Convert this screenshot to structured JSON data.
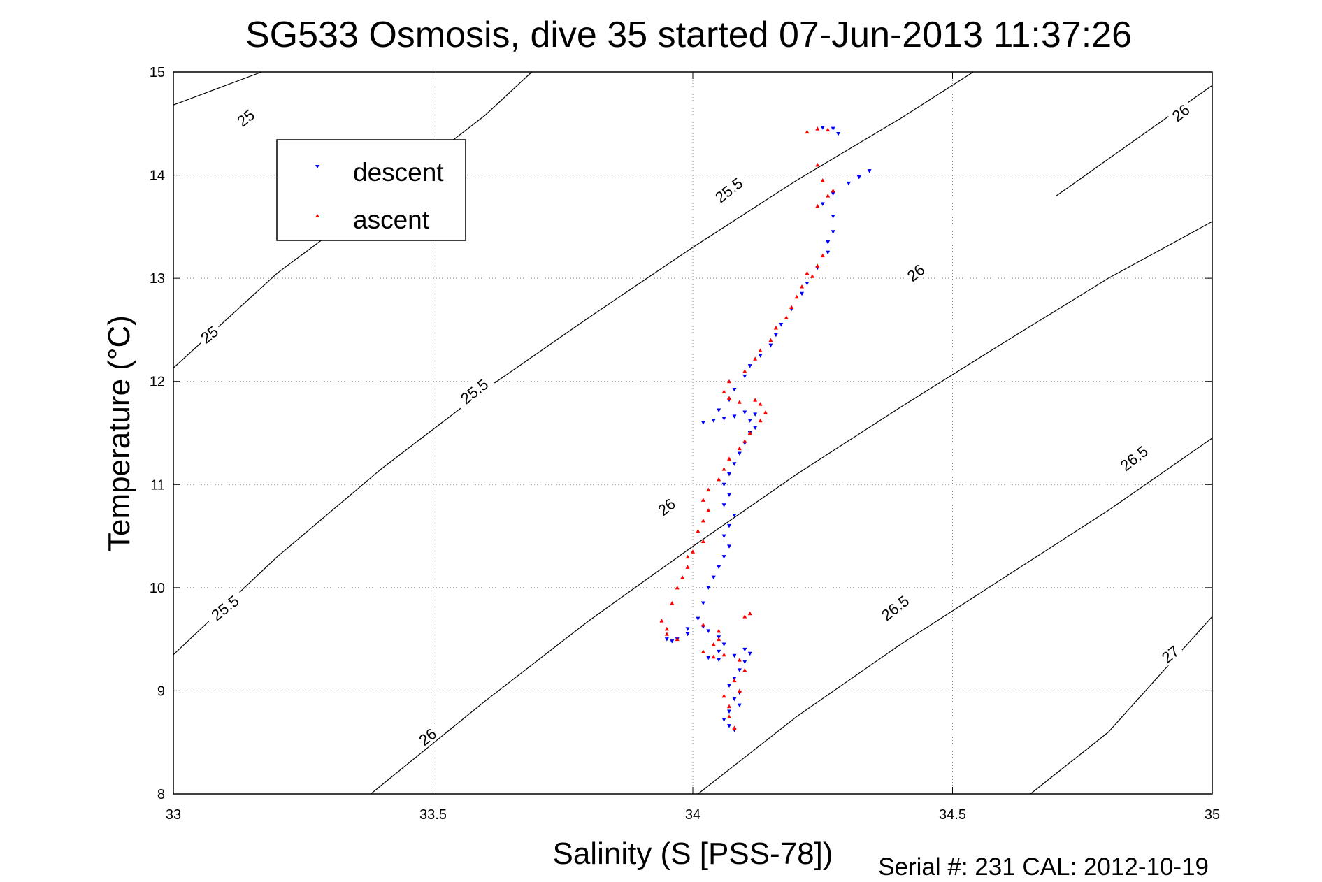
{
  "chart_data": {
    "type": "scatter",
    "title": "SG533 Osmosis, dive 35 started 07-Jun-2013 11:37:26",
    "xlabel": "Salinity (S [PSS-78])",
    "ylabel": "Temperature (°C)",
    "xlim": [
      33,
      35
    ],
    "ylim": [
      8,
      15
    ],
    "xticks": [
      33,
      33.5,
      34,
      34.5,
      35
    ],
    "xtick_labels": [
      "33",
      "33.5",
      "34",
      "34.5",
      "35"
    ],
    "yticks": [
      8,
      9,
      10,
      11,
      12,
      13,
      14,
      15
    ],
    "ytick_labels": [
      "8",
      "9",
      "10",
      "11",
      "12",
      "13",
      "14",
      "15"
    ],
    "grid": true,
    "legend_position": "upper-left",
    "footer": "Serial #: 231  CAL: 2012-10-19",
    "series": [
      {
        "name": "descent",
        "color": "#0000ff",
        "marker": "triangle-down",
        "points": [
          [
            34.08,
            8.62
          ],
          [
            34.07,
            8.66
          ],
          [
            34.06,
            8.72
          ],
          [
            34.07,
            8.8
          ],
          [
            34.09,
            8.86
          ],
          [
            34.08,
            8.92
          ],
          [
            34.09,
            8.98
          ],
          [
            34.07,
            9.05
          ],
          [
            34.08,
            9.12
          ],
          [
            34.09,
            9.2
          ],
          [
            34.1,
            9.28
          ],
          [
            34.11,
            9.36
          ],
          [
            34.1,
            9.4
          ],
          [
            34.08,
            9.34
          ],
          [
            34.05,
            9.3
          ],
          [
            34.03,
            9.32
          ],
          [
            34.05,
            9.38
          ],
          [
            34.06,
            9.45
          ],
          [
            34.05,
            9.52
          ],
          [
            34.03,
            9.58
          ],
          [
            34.02,
            9.62
          ],
          [
            33.99,
            9.55
          ],
          [
            33.97,
            9.5
          ],
          [
            33.96,
            9.48
          ],
          [
            33.95,
            9.5
          ],
          [
            33.99,
            9.6
          ],
          [
            34.01,
            9.7
          ],
          [
            34.02,
            9.85
          ],
          [
            34.03,
            10.0
          ],
          [
            34.04,
            10.1
          ],
          [
            34.05,
            10.2
          ],
          [
            34.06,
            10.3
          ],
          [
            34.07,
            10.4
          ],
          [
            34.06,
            10.5
          ],
          [
            34.07,
            10.6
          ],
          [
            34.08,
            10.7
          ],
          [
            34.06,
            10.8
          ],
          [
            34.07,
            10.9
          ],
          [
            34.06,
            11.0
          ],
          [
            34.07,
            11.1
          ],
          [
            34.08,
            11.2
          ],
          [
            34.09,
            11.3
          ],
          [
            34.1,
            11.4
          ],
          [
            34.11,
            11.5
          ],
          [
            34.12,
            11.55
          ],
          [
            34.11,
            11.62
          ],
          [
            34.12,
            11.68
          ],
          [
            34.1,
            11.7
          ],
          [
            34.08,
            11.66
          ],
          [
            34.06,
            11.64
          ],
          [
            34.04,
            11.62
          ],
          [
            34.02,
            11.6
          ],
          [
            34.05,
            11.72
          ],
          [
            34.07,
            11.82
          ],
          [
            34.08,
            11.92
          ],
          [
            34.1,
            12.05
          ],
          [
            34.11,
            12.15
          ],
          [
            34.13,
            12.25
          ],
          [
            34.15,
            12.35
          ],
          [
            34.16,
            12.45
          ],
          [
            34.17,
            12.55
          ],
          [
            34.19,
            12.7
          ],
          [
            34.21,
            12.85
          ],
          [
            34.22,
            12.95
          ],
          [
            34.24,
            13.1
          ],
          [
            34.26,
            13.25
          ],
          [
            34.26,
            13.35
          ],
          [
            34.27,
            13.45
          ],
          [
            34.27,
            13.6
          ],
          [
            34.25,
            13.72
          ],
          [
            34.27,
            13.82
          ],
          [
            34.3,
            13.92
          ],
          [
            34.32,
            13.98
          ],
          [
            34.34,
            14.04
          ],
          [
            34.28,
            14.4
          ],
          [
            34.27,
            14.45
          ],
          [
            34.25,
            14.46
          ]
        ]
      },
      {
        "name": "ascent",
        "color": "#ff0000",
        "marker": "triangle-up",
        "points": [
          [
            34.08,
            8.64
          ],
          [
            34.07,
            8.75
          ],
          [
            34.07,
            8.85
          ],
          [
            34.06,
            8.95
          ],
          [
            34.09,
            9.0
          ],
          [
            34.08,
            9.1
          ],
          [
            34.1,
            9.2
          ],
          [
            34.09,
            9.3
          ],
          [
            34.06,
            9.35
          ],
          [
            34.04,
            9.33
          ],
          [
            34.02,
            9.38
          ],
          [
            34.04,
            9.45
          ],
          [
            34.05,
            9.5
          ],
          [
            34.05,
            9.58
          ],
          [
            34.02,
            9.64
          ],
          [
            34.1,
            9.72
          ],
          [
            34.11,
            9.75
          ],
          [
            33.95,
            9.6
          ],
          [
            33.94,
            9.68
          ],
          [
            33.95,
            9.55
          ],
          [
            33.97,
            9.5
          ],
          [
            33.96,
            9.85
          ],
          [
            33.97,
            10.0
          ],
          [
            33.98,
            10.1
          ],
          [
            33.99,
            10.2
          ],
          [
            33.99,
            10.3
          ],
          [
            34.0,
            10.35
          ],
          [
            34.02,
            10.45
          ],
          [
            34.01,
            10.55
          ],
          [
            34.02,
            10.65
          ],
          [
            34.03,
            10.75
          ],
          [
            34.02,
            10.85
          ],
          [
            34.03,
            10.95
          ],
          [
            34.05,
            11.05
          ],
          [
            34.06,
            11.15
          ],
          [
            34.07,
            11.25
          ],
          [
            34.09,
            11.35
          ],
          [
            34.1,
            11.42
          ],
          [
            34.11,
            11.5
          ],
          [
            34.13,
            11.62
          ],
          [
            34.14,
            11.7
          ],
          [
            34.13,
            11.78
          ],
          [
            34.12,
            11.82
          ],
          [
            34.09,
            11.8
          ],
          [
            34.07,
            11.84
          ],
          [
            34.06,
            11.9
          ],
          [
            34.07,
            12.0
          ],
          [
            34.1,
            12.1
          ],
          [
            34.12,
            12.22
          ],
          [
            34.13,
            12.3
          ],
          [
            34.15,
            12.4
          ],
          [
            34.16,
            12.52
          ],
          [
            34.18,
            12.62
          ],
          [
            34.19,
            12.72
          ],
          [
            34.2,
            12.82
          ],
          [
            34.21,
            12.92
          ],
          [
            34.23,
            13.02
          ],
          [
            34.24,
            13.12
          ],
          [
            34.25,
            13.22
          ],
          [
            34.22,
            13.05
          ],
          [
            34.24,
            13.7
          ],
          [
            34.26,
            13.8
          ],
          [
            34.27,
            13.85
          ],
          [
            34.25,
            13.95
          ],
          [
            34.24,
            14.1
          ],
          [
            34.22,
            14.42
          ],
          [
            34.24,
            14.45
          ],
          [
            34.26,
            14.44
          ]
        ]
      }
    ],
    "contours": [
      {
        "level": 25,
        "points": [
          [
            33.0,
            14.68
          ],
          [
            33.17,
            15.0
          ]
        ],
        "labels": [
          {
            "text": "25",
            "at": [
              33.14,
              14.55
            ]
          }
        ]
      },
      {
        "level": 25,
        "points": [
          [
            33.0,
            12.13
          ],
          [
            33.2,
            13.05
          ],
          [
            33.4,
            13.8
          ],
          [
            33.6,
            14.58
          ],
          [
            33.69,
            15.0
          ]
        ],
        "labels": [
          {
            "text": "25",
            "at": [
              33.07,
              12.45
            ]
          }
        ]
      },
      {
        "level": 25.5,
        "points": [
          [
            33.0,
            9.35
          ],
          [
            33.2,
            10.3
          ],
          [
            33.4,
            11.15
          ],
          [
            33.6,
            11.92
          ],
          [
            33.8,
            12.62
          ],
          [
            34.0,
            13.3
          ],
          [
            34.2,
            13.95
          ],
          [
            34.4,
            14.55
          ],
          [
            34.54,
            15.0
          ]
        ],
        "labels": [
          {
            "text": "25.5",
            "at": [
              33.1,
              9.8
            ]
          },
          {
            "text": "25.5",
            "at": [
              33.58,
              11.9
            ]
          },
          {
            "text": "25.5",
            "at": [
              34.07,
              13.85
            ]
          }
        ]
      },
      {
        "level": 26,
        "points": [
          [
            33.38,
            8.0
          ],
          [
            33.6,
            8.9
          ],
          [
            33.8,
            9.68
          ],
          [
            34.0,
            10.4
          ],
          [
            34.2,
            11.1
          ],
          [
            34.4,
            11.75
          ],
          [
            34.6,
            12.38
          ],
          [
            34.8,
            13.0
          ],
          [
            35.0,
            13.55
          ]
        ],
        "labels": [
          {
            "text": "26",
            "at": [
              33.49,
              8.55
            ]
          },
          {
            "text": "26",
            "at": [
              33.95,
              10.78
            ]
          },
          {
            "text": "26",
            "at": [
              34.43,
              13.05
            ]
          }
        ]
      },
      {
        "level": 26,
        "points": [
          [
            34.7,
            13.8
          ],
          [
            35.0,
            14.87
          ]
        ],
        "labels": [
          {
            "text": "26",
            "at": [
              34.94,
              14.6
            ]
          }
        ]
      },
      {
        "level": 26.5,
        "points": [
          [
            34.01,
            8.0
          ],
          [
            34.2,
            8.75
          ],
          [
            34.4,
            9.45
          ],
          [
            34.6,
            10.1
          ],
          [
            34.8,
            10.75
          ],
          [
            35.0,
            11.45
          ]
        ],
        "labels": [
          {
            "text": "26.5",
            "at": [
              34.39,
              9.8
            ]
          },
          {
            "text": "26.5",
            "at": [
              34.85,
              11.25
            ]
          }
        ]
      },
      {
        "level": 27,
        "points": [
          [
            34.65,
            8.0
          ],
          [
            34.8,
            8.6
          ],
          [
            35.0,
            9.72
          ]
        ],
        "labels": [
          {
            "text": "27",
            "at": [
              34.92,
              9.35
            ]
          }
        ]
      }
    ]
  }
}
